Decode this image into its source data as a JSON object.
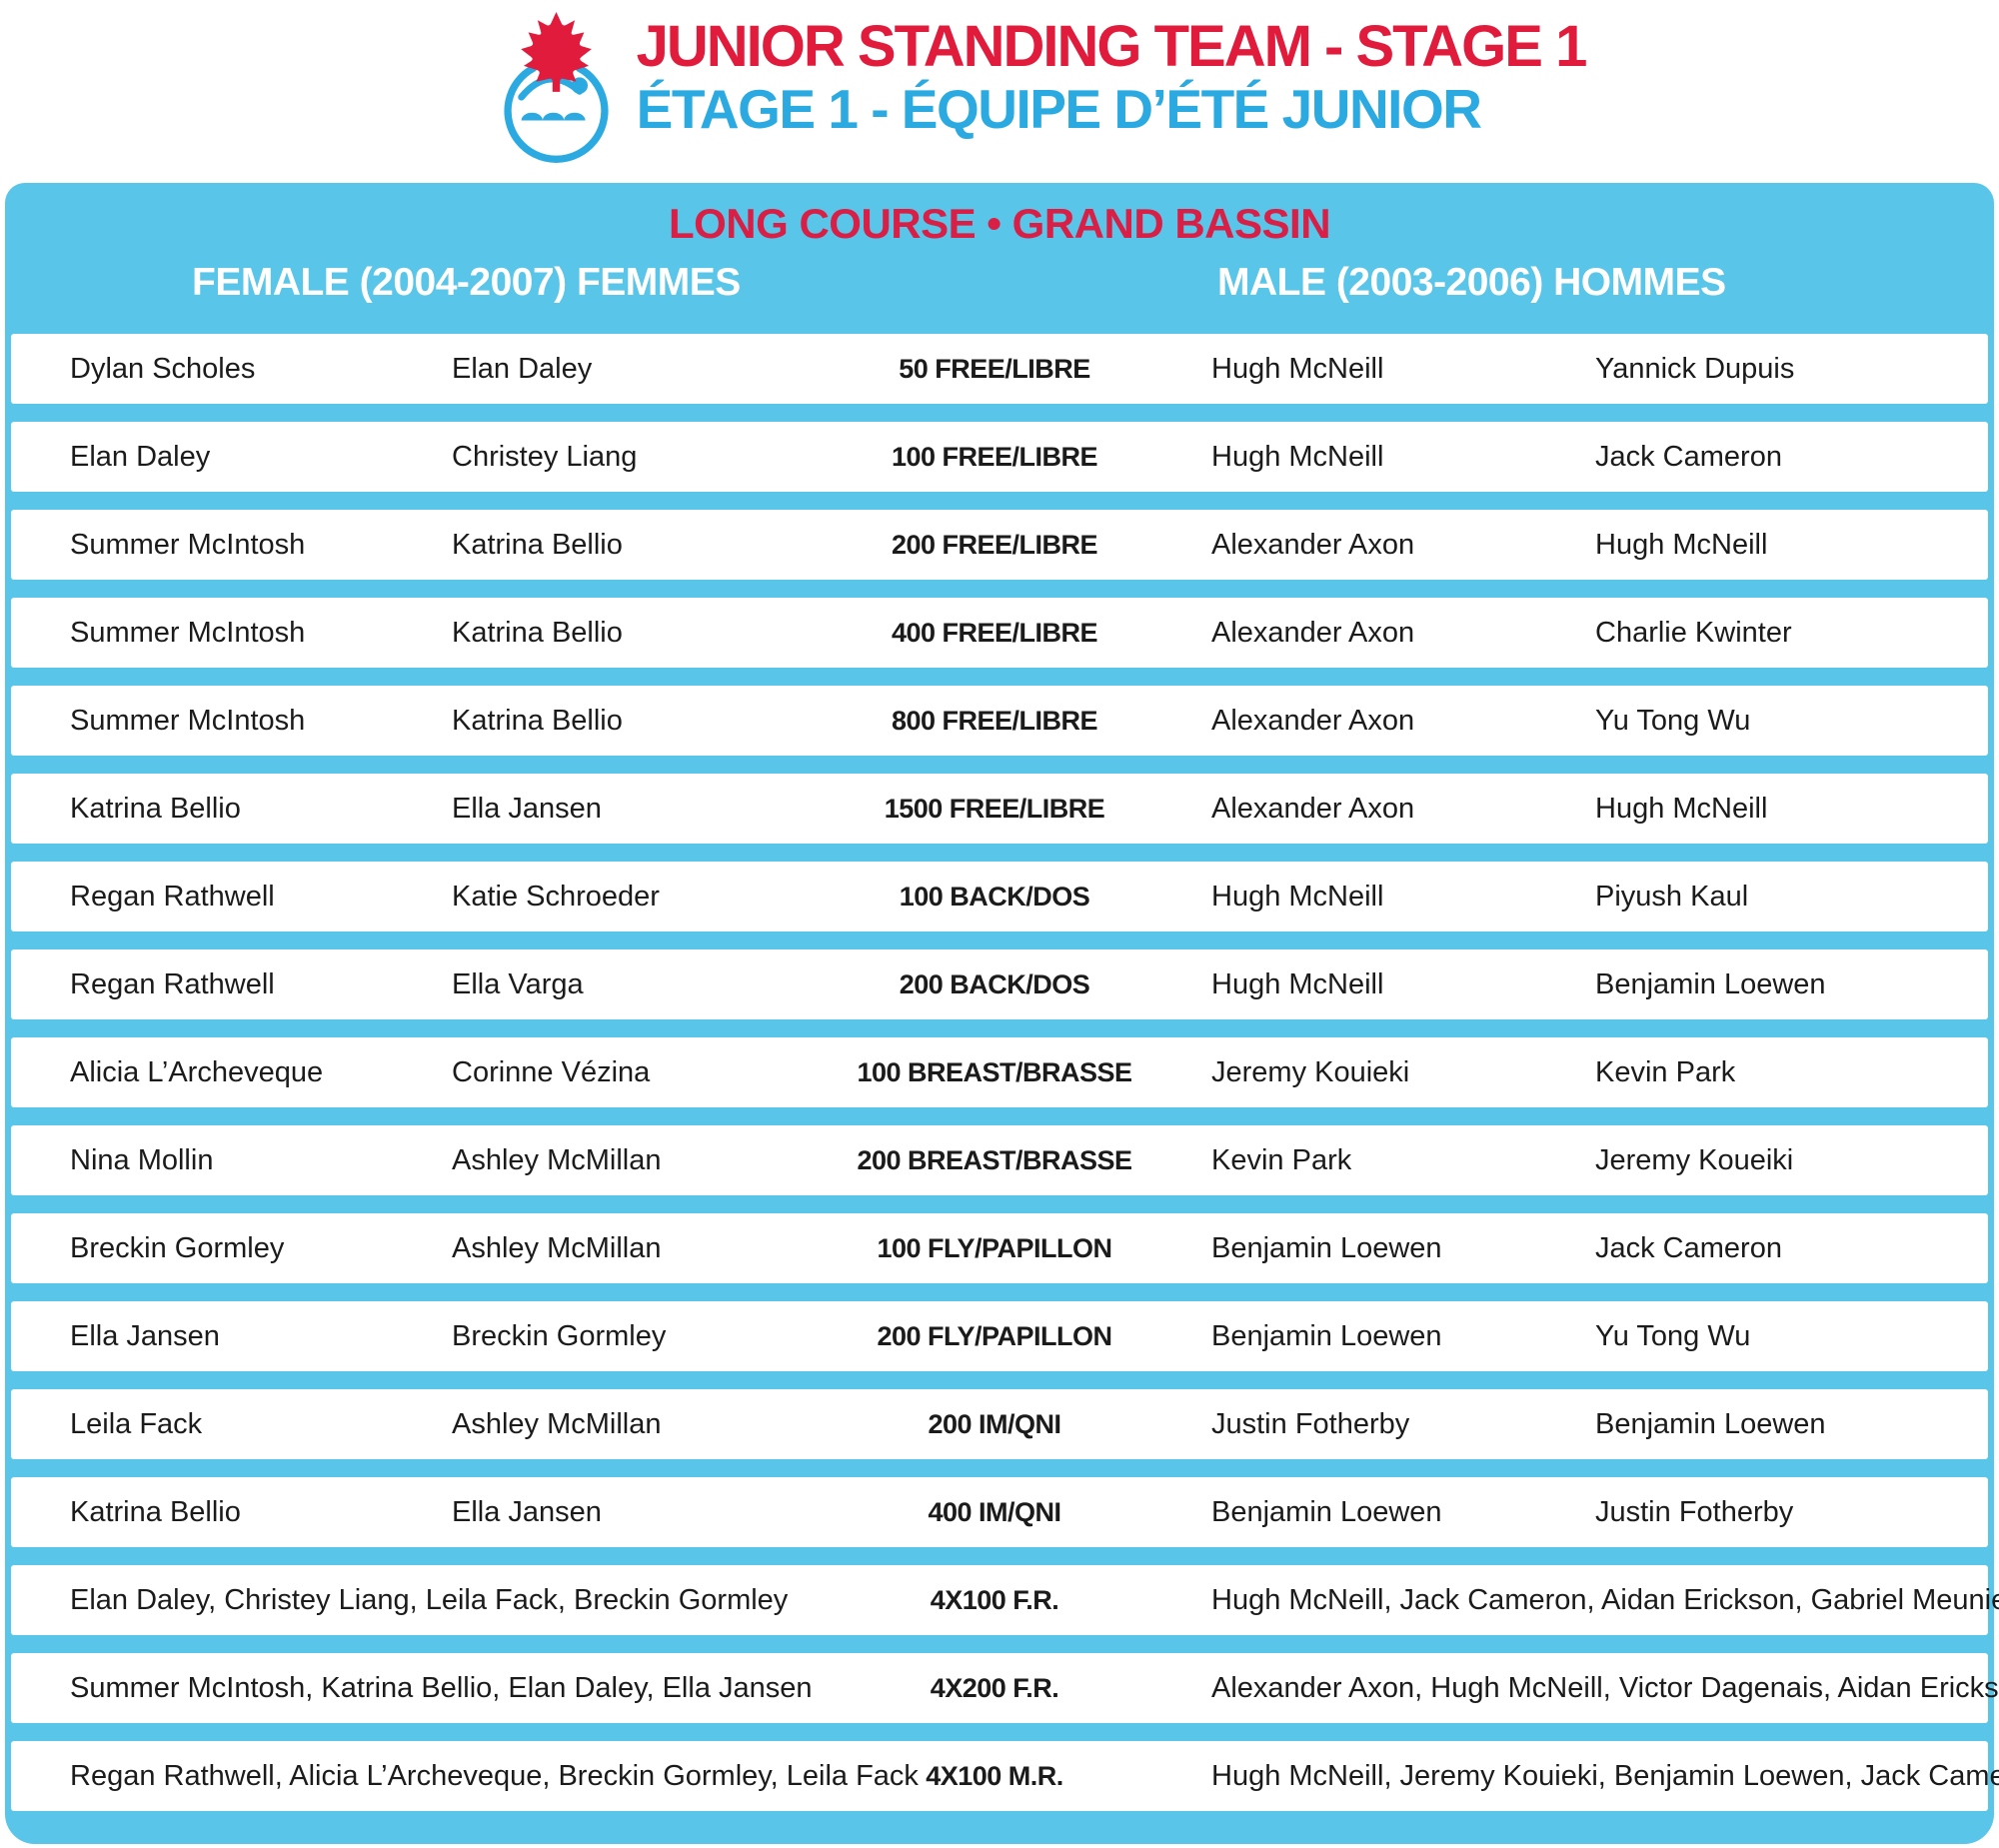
{
  "header": {
    "title_line1": "JUNIOR STANDING TEAM - STAGE 1",
    "title_line2": "ÉTAGE 1 - ÉQUIPE D’ÉTÉ JUNIOR",
    "logo": "swimming-canada-logo"
  },
  "table": {
    "subtitle": "LONG COURSE • GRAND BASSIN",
    "female_header": "FEMALE (2004-2007) FEMMES",
    "male_header": "MALE (2003-2006) HOMMES",
    "rows": [
      {
        "female1": "Dylan Scholes",
        "female2": "Elan Daley",
        "event": "50 FREE/LIBRE",
        "male1": "Hugh McNeill",
        "male2": "Yannick Dupuis"
      },
      {
        "female1": "Elan Daley",
        "female2": "Christey Liang",
        "event": "100 FREE/LIBRE",
        "male1": "Hugh McNeill",
        "male2": "Jack Cameron"
      },
      {
        "female1": "Summer McIntosh",
        "female2": "Katrina Bellio",
        "event": "200 FREE/LIBRE",
        "male1": "Alexander Axon",
        "male2": "Hugh McNeill"
      },
      {
        "female1": "Summer McIntosh",
        "female2": "Katrina Bellio",
        "event": "400 FREE/LIBRE",
        "male1": "Alexander Axon",
        "male2": "Charlie Kwinter"
      },
      {
        "female1": "Summer McIntosh",
        "female2": "Katrina Bellio",
        "event": "800 FREE/LIBRE",
        "male1": "Alexander Axon",
        "male2": "Yu Tong Wu"
      },
      {
        "female1": "Katrina Bellio",
        "female2": "Ella Jansen",
        "event": "1500 FREE/LIBRE",
        "male1": "Alexander Axon",
        "male2": "Hugh McNeill"
      },
      {
        "female1": "Regan Rathwell",
        "female2": "Katie Schroeder",
        "event": "100 BACK/DOS",
        "male1": "Hugh McNeill",
        "male2": "Piyush Kaul"
      },
      {
        "female1": "Regan Rathwell",
        "female2": "Ella Varga",
        "event": "200 BACK/DOS",
        "male1": "Hugh McNeill",
        "male2": "Benjamin Loewen"
      },
      {
        "female1": "Alicia L’Archeveque",
        "female2": "Corinne Vézina",
        "event": "100 BREAST/BRASSE",
        "male1": "Jeremy Kouieki",
        "male2": "Kevin Park"
      },
      {
        "female1": "Nina Mollin",
        "female2": "Ashley McMillan",
        "event": "200 BREAST/BRASSE",
        "male1": "Kevin Park",
        "male2": "Jeremy Koueiki"
      },
      {
        "female1": "Breckin Gormley",
        "female2": "Ashley McMillan",
        "event": "100 FLY/PAPILLON",
        "male1": "Benjamin Loewen",
        "male2": "Jack Cameron"
      },
      {
        "female1": "Ella Jansen",
        "female2": "Breckin Gormley",
        "event": "200 FLY/PAPILLON",
        "male1": "Benjamin Loewen",
        "male2": "Yu Tong Wu"
      },
      {
        "female1": "Leila Fack",
        "female2": "Ashley McMillan",
        "event": "200 IM/QNI",
        "male1": "Justin Fotherby",
        "male2": "Benjamin Loewen"
      },
      {
        "female1": "Katrina Bellio",
        "female2": "Ella Jansen",
        "event": "400 IM/QNI",
        "male1": "Benjamin Loewen",
        "male2": "Justin Fotherby"
      },
      {
        "female": "Elan Daley, Christey Liang, Leila Fack, Breckin Gormley",
        "event": "4X100 F.R.",
        "male": "Hugh McNeill, Jack Cameron, Aidan Erickson, Gabriel Meunier"
      },
      {
        "female": "Summer McIntosh, Katrina Bellio, Elan Daley, Ella Jansen",
        "event": "4X200 F.R.",
        "male": "Alexander Axon, Hugh McNeill, Victor Dagenais, Aidan Erickson"
      },
      {
        "female": "Regan Rathwell, Alicia L’Archeveque, Breckin Gormley, Leila Fack",
        "event": "4X100 M.R.",
        "male": "Hugh McNeill,  Jeremy Kouieki, Benjamin Loewen, Jack Cameron"
      }
    ]
  },
  "colors": {
    "panel_blue": "#58C5E9",
    "title_red": "#E11B3B",
    "course_red": "#D91F45",
    "light_blue": "#2BAAE2",
    "row_white": "#FFFFFF",
    "text_ink": "#1B1B1B"
  }
}
